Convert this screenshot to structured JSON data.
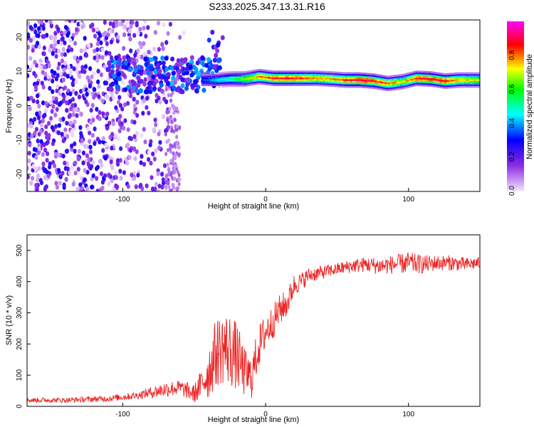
{
  "figure_title": "S233.2025.347.13.31.R16",
  "chart_data": [
    {
      "type": "heatmap",
      "xlabel": "Height of straight line (km)",
      "ylabel": "Frequency (Hz)",
      "xlim": [
        -167,
        150
      ],
      "ylim": [
        -25,
        25
      ],
      "x_ticks": [
        -100,
        0,
        100
      ],
      "y_ticks": [
        -20,
        -10,
        0,
        10,
        20
      ],
      "grid": false,
      "colorbar": {
        "label": "Normalized spectral amplitude",
        "range": [
          0,
          1
        ],
        "ticks": [
          0.0,
          0.2,
          0.4,
          0.6,
          0.8
        ],
        "colors": [
          "#f0e0ff",
          "#8a2be2",
          "#0000ff",
          "#00ffff",
          "#00ff00",
          "#ffff00",
          "#ff0000",
          "#ff00ff"
        ]
      },
      "ridge": {
        "description_values": "dominant frequency vs height",
        "x": [
          -45,
          -35,
          -25,
          -15,
          -5,
          5,
          15,
          25,
          35,
          45,
          55,
          65,
          75,
          85,
          95,
          105,
          115,
          125,
          135,
          150
        ],
        "y": [
          7.5,
          7.5,
          7.8,
          7.8,
          8.5,
          8.0,
          8.0,
          8.0,
          8.0,
          7.8,
          7.5,
          7.5,
          7.2,
          6.5,
          7.0,
          8.0,
          7.8,
          7.2,
          7.5,
          7.5
        ],
        "amplitude": [
          0.35,
          0.45,
          0.55,
          0.7,
          0.85,
          0.9,
          0.92,
          0.88,
          0.8,
          0.82,
          0.9,
          0.95,
          0.92,
          0.85,
          0.75,
          0.9,
          0.95,
          0.92,
          0.8,
          0.75
        ]
      },
      "noise_region": {
        "x": [
          -167,
          -55
        ],
        "y": [
          -25,
          25
        ],
        "amplitude_max": 0.3
      }
    },
    {
      "type": "line",
      "xlabel": "Height of straight line (km)",
      "ylabel": "SNR (10 * v/v)",
      "xlim": [
        -167,
        150
      ],
      "ylim": [
        0,
        550
      ],
      "x_ticks": [
        -100,
        0,
        100
      ],
      "y_ticks": [
        0,
        100,
        200,
        300,
        400,
        500
      ],
      "grid": false,
      "series": [
        {
          "color": "#ee2222",
          "x": [
            -167,
            -140,
            -110,
            -90,
            -70,
            -60,
            -50,
            -45,
            -40,
            -35,
            -30,
            -25,
            -20,
            -15,
            -10,
            -5,
            0,
            5,
            10,
            15,
            20,
            25,
            30,
            40,
            50,
            60,
            70,
            80,
            90,
            100,
            110,
            120,
            130,
            140,
            150
          ],
          "y": [
            20,
            20,
            25,
            35,
            55,
            60,
            40,
            70,
            110,
            170,
            190,
            180,
            160,
            110,
            90,
            190,
            240,
            270,
            310,
            330,
            390,
            400,
            420,
            430,
            440,
            450,
            455,
            450,
            455,
            460,
            455,
            460,
            460,
            455,
            460
          ],
          "noise_amplitude": [
            8,
            8,
            10,
            12,
            25,
            25,
            30,
            50,
            90,
            110,
            120,
            120,
            110,
            80,
            70,
            70,
            60,
            55,
            50,
            45,
            35,
            30,
            25,
            22,
            20,
            22,
            25,
            28,
            30,
            35,
            30,
            25,
            25,
            22,
            20
          ]
        }
      ]
    }
  ]
}
